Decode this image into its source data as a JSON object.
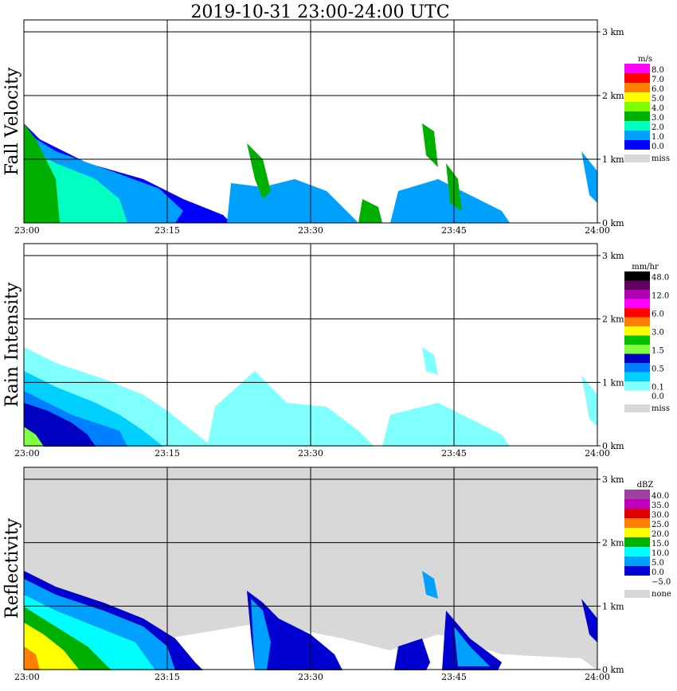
{
  "title": "2019-10-31   23:00-24:00 UTC",
  "chart_data": [
    {
      "type": "heatmap",
      "name": "fall-velocity",
      "ylabel": "Fall Velocity",
      "unit": "m/s",
      "x_ticks": [
        "23:00",
        "23:15",
        "23:30",
        "23:45",
        "24:00"
      ],
      "y_ticks": [
        "0 km",
        "1 km",
        "2 km",
        "3 km"
      ],
      "legend": [
        {
          "label": "8.0",
          "color": "#ff00ff"
        },
        {
          "label": "7.0",
          "color": "#ff0000"
        },
        {
          "label": "6.0",
          "color": "#ff8000"
        },
        {
          "label": "5.0",
          "color": "#ffff00"
        },
        {
          "label": "4.0",
          "color": "#80ff00"
        },
        {
          "label": "3.0",
          "color": "#00b000"
        },
        {
          "label": "2.0",
          "color": "#00ffc0"
        },
        {
          "label": "1.0",
          "color": "#00a0ff"
        },
        {
          "label": "0.0",
          "color": "#0000ff"
        },
        {
          "label": "miss",
          "color": "#d8d8d8"
        }
      ],
      "background": "#ffffff"
    },
    {
      "type": "heatmap",
      "name": "rain-intensity",
      "ylabel": "Rain Intensity",
      "unit": "mm/hr",
      "x_ticks": [
        "23:00",
        "23:15",
        "23:30",
        "23:45",
        "24:00"
      ],
      "y_ticks": [
        "0 km",
        "1 km",
        "2 km",
        "3 km"
      ],
      "legend": [
        {
          "label": "48.0",
          "color": "#000000"
        },
        {
          "label": "",
          "color": "#600060"
        },
        {
          "label": "12.0",
          "color": "#b000b0"
        },
        {
          "label": "",
          "color": "#ff00ff"
        },
        {
          "label": "6.0",
          "color": "#ff0000"
        },
        {
          "label": "",
          "color": "#ff8000"
        },
        {
          "label": "3.0",
          "color": "#ffff00"
        },
        {
          "label": "",
          "color": "#00c000"
        },
        {
          "label": "1.5",
          "color": "#80ff40"
        },
        {
          "label": "",
          "color": "#0000c0"
        },
        {
          "label": "0.5",
          "color": "#0080ff"
        },
        {
          "label": "",
          "color": "#00d0ff"
        },
        {
          "label": "0.1",
          "color": "#80ffff"
        },
        {
          "label": "0.0",
          "color": "#ffffff"
        },
        {
          "label": "miss",
          "color": "#d8d8d8"
        }
      ],
      "background": "#ffffff"
    },
    {
      "type": "heatmap",
      "name": "reflectivity",
      "ylabel": "Reflectivity",
      "unit": "dBZ",
      "x_ticks": [
        "23:00",
        "23:15",
        "23:30",
        "23:45",
        "24:00"
      ],
      "y_ticks": [
        "0 km",
        "1 km",
        "2 km",
        "3 km"
      ],
      "legend": [
        {
          "label": "40.0",
          "color": "#a040a0"
        },
        {
          "label": "35.0",
          "color": "#c000c0"
        },
        {
          "label": "30.0",
          "color": "#e00000"
        },
        {
          "label": "25.0",
          "color": "#ff8000"
        },
        {
          "label": "20.0",
          "color": "#ffff00"
        },
        {
          "label": "15.0",
          "color": "#00b000"
        },
        {
          "label": "10.0",
          "color": "#00ffff"
        },
        {
          "label": "5.0",
          "color": "#00a0ff"
        },
        {
          "label": "0.0",
          "color": "#0000d0"
        },
        {
          "label": "−5.0",
          "color": "#ffffff"
        },
        {
          "label": "none",
          "color": "#d8d8d8"
        }
      ],
      "background": "#d8d8d8"
    }
  ]
}
